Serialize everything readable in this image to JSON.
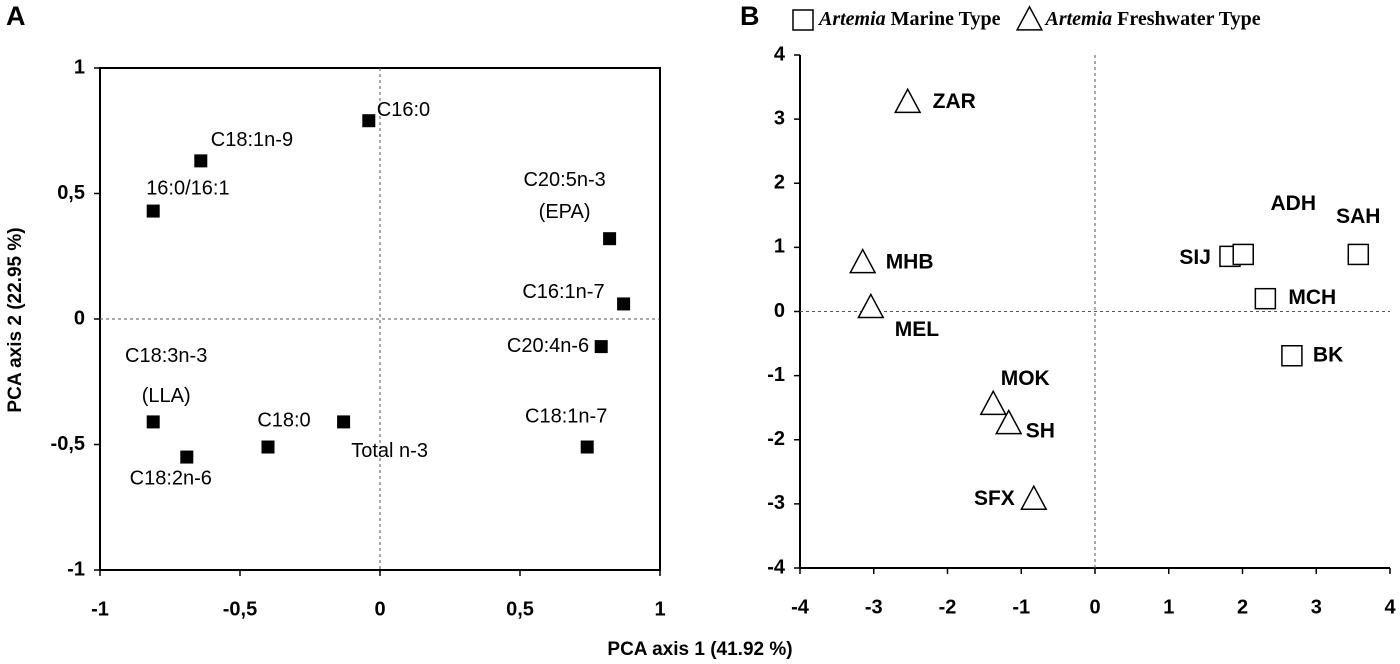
{
  "chart_data": [
    {
      "type": "scatter",
      "panel": "A",
      "xlabel": "PCA axis 1 (41.92 %)",
      "ylabel": "PCA axis 2 (22.95 %)",
      "xlim": [
        -1,
        1
      ],
      "ylim": [
        -1,
        1
      ],
      "xticks": [
        -1,
        {
          "value": -0.5,
          "label": "-0,5"
        },
        0,
        {
          "value": 0.5,
          "label": "0,5"
        },
        1
      ],
      "yticks": [
        -1,
        {
          "value": -0.5,
          "label": "-0,5"
        },
        0,
        {
          "value": 0.5,
          "label": "0,5"
        },
        1
      ],
      "frame": true,
      "zero_lines": true,
      "series": [
        {
          "marker": "filled-square",
          "color": "#000000",
          "labels": [
            [
              "C16:0"
            ],
            [
              "C18:1n-9"
            ],
            [
              "16:0/16:1"
            ],
            [
              "C20:5n-3",
              "(EPA)"
            ],
            [
              "C16:1n-7"
            ],
            [
              "C20:4n-6"
            ],
            [
              "C18:1n-7"
            ],
            [
              "C18:3n-3",
              "(LLA)"
            ],
            [
              "C18:2n-6"
            ],
            [
              "C18:0"
            ],
            [
              "Total n-3"
            ]
          ],
          "x": [
            -0.04,
            -0.64,
            -0.81,
            0.82,
            0.87,
            0.79,
            0.74,
            -0.81,
            -0.69,
            -0.4,
            -0.13
          ],
          "values": [
            0.79,
            0.63,
            0.43,
            0.32,
            0.06,
            -0.11,
            -0.51,
            -0.41,
            -0.55,
            -0.51,
            -0.41
          ]
        }
      ]
    },
    {
      "type": "scatter",
      "panel": "B",
      "xlim": [
        -4,
        4
      ],
      "ylim": [
        -4,
        4
      ],
      "xticks": [
        -4,
        -3,
        -2,
        -1,
        0,
        1,
        2,
        3,
        4
      ],
      "yticks": [
        -4,
        -3,
        -2,
        -1,
        0,
        1,
        2,
        3,
        4
      ],
      "frame": false,
      "zero_lines": true,
      "series": [
        {
          "name": "Artemia Marine Type",
          "marker": "square",
          "color": "#000000",
          "labels": [
            [
              "SIJ"
            ],
            [
              "ADH"
            ],
            [
              "SAH"
            ],
            [
              "MCH"
            ],
            [
              "BK"
            ]
          ],
          "x": [
            1.83,
            2.01,
            3.57,
            2.31,
            2.67
          ],
          "values": [
            0.86,
            0.89,
            0.89,
            0.2,
            -0.69
          ]
        },
        {
          "name": "Artemia Freshwater Type",
          "marker": "triangle",
          "color": "#000000",
          "labels": [
            [
              "ZAR"
            ],
            [
              "MHB"
            ],
            [
              "MEL"
            ],
            [
              "MOK"
            ],
            [
              "SH"
            ],
            [
              "SFX"
            ]
          ],
          "x": [
            -2.54,
            -3.15,
            -3.04,
            -1.38,
            -1.17,
            -0.83
          ],
          "values": [
            3.26,
            0.76,
            0.06,
            -1.45,
            -1.75,
            -2.93
          ]
        }
      ]
    }
  ]
}
